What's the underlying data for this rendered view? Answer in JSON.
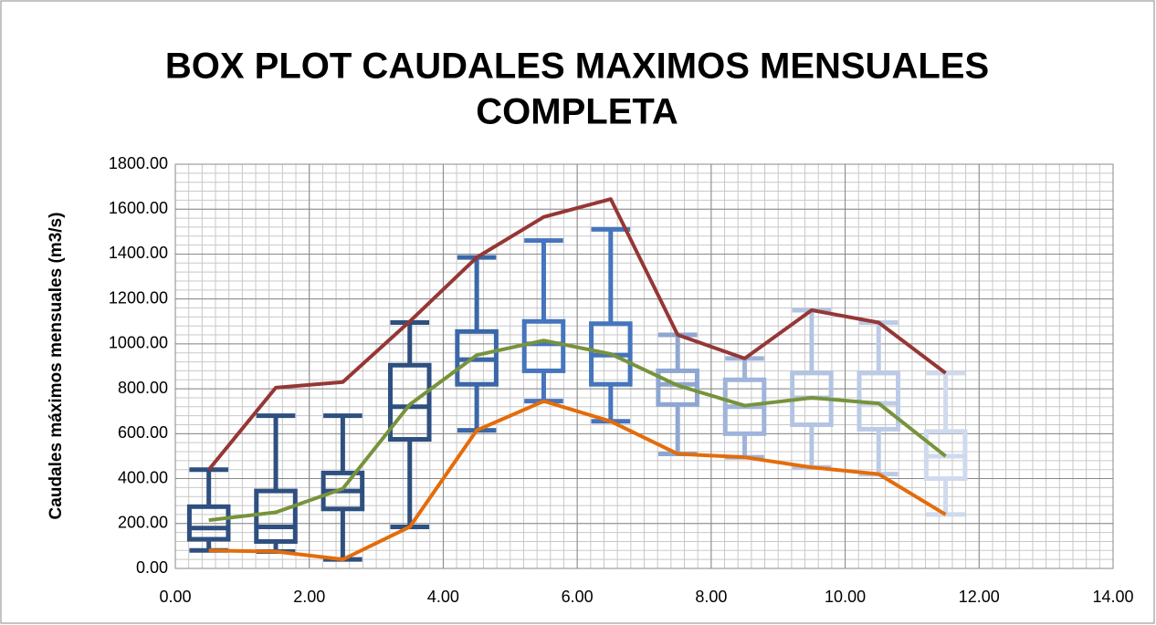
{
  "chart_data": {
    "type": "boxplot",
    "title": [
      "BOX PLOT CAUDALES MAXIMOS MENSUALES",
      "COMPLETA"
    ],
    "ylabel": "Caudales máximos mensuales (m3/s)",
    "xlim": [
      0,
      14
    ],
    "xticks": [
      {
        "value": 0,
        "label": "0.00"
      },
      {
        "value": 2,
        "label": "2.00"
      },
      {
        "value": 4,
        "label": "4.00"
      },
      {
        "value": 6,
        "label": "6.00"
      },
      {
        "value": 8,
        "label": "8.00"
      },
      {
        "value": 10,
        "label": "10.00"
      },
      {
        "value": 12,
        "label": "12.00"
      },
      {
        "value": 14,
        "label": "14.00"
      }
    ],
    "ylim": [
      0,
      1800
    ],
    "yticks": [
      {
        "value": 0,
        "label": "0.00"
      },
      {
        "value": 200,
        "label": "200.00"
      },
      {
        "value": 400,
        "label": "400.00"
      },
      {
        "value": 600,
        "label": "600.00"
      },
      {
        "value": 800,
        "label": "800.00"
      },
      {
        "value": 1000,
        "label": "1000.00"
      },
      {
        "value": 1200,
        "label": "1200.00"
      },
      {
        "value": 1400,
        "label": "1400.00"
      },
      {
        "value": 1600,
        "label": "1600.00"
      },
      {
        "value": 1800,
        "label": "1800.00"
      }
    ],
    "grid": true,
    "minor_grid": {
      "x": 0.2,
      "y": 40
    },
    "x": [
      0.5,
      1.5,
      2.5,
      3.5,
      4.5,
      5.5,
      6.5,
      7.5,
      8.5,
      9.5,
      10.5,
      11.5
    ],
    "boxes": [
      {
        "color": "#2e4f7f",
        "min": 80,
        "q1": 130,
        "median": 180,
        "q3": 275,
        "max": 440
      },
      {
        "color": "#2e4f7f",
        "min": 75,
        "q1": 120,
        "median": 185,
        "q3": 345,
        "max": 680
      },
      {
        "color": "#2e4f7f",
        "min": 40,
        "q1": 265,
        "median": 345,
        "q3": 425,
        "max": 680
      },
      {
        "color": "#2e4f7f",
        "min": 185,
        "q1": 575,
        "median": 720,
        "q3": 905,
        "max": 1095
      },
      {
        "color": "#3a67a8",
        "min": 615,
        "q1": 820,
        "median": 930,
        "q3": 1055,
        "max": 1385
      },
      {
        "color": "#4575bd",
        "min": 745,
        "q1": 880,
        "median": 1000,
        "q3": 1100,
        "max": 1460
      },
      {
        "color": "#4575bd",
        "min": 655,
        "q1": 820,
        "median": 950,
        "q3": 1090,
        "max": 1510
      },
      {
        "color": "#8ea7d2",
        "min": 510,
        "q1": 730,
        "median": 820,
        "q3": 880,
        "max": 1040
      },
      {
        "color": "#9fb4da",
        "min": 495,
        "q1": 600,
        "median": 720,
        "q3": 840,
        "max": 935
      },
      {
        "color": "#b3c4e3",
        "min": 450,
        "q1": 640,
        "median": 760,
        "q3": 870,
        "max": 1150
      },
      {
        "color": "#bccbe7",
        "min": 420,
        "q1": 620,
        "median": 735,
        "q3": 870,
        "max": 1095
      },
      {
        "color": "#cfdaee",
        "min": 240,
        "q1": 400,
        "median": 500,
        "q3": 610,
        "max": 870
      }
    ],
    "series": [
      {
        "color": "#953735",
        "values": [
          440,
          805,
          830,
          1100,
          1385,
          1565,
          1645,
          1040,
          935,
          1150,
          1095,
          870
        ]
      },
      {
        "color": "#77933c",
        "values": [
          215,
          250,
          355,
          730,
          950,
          1015,
          955,
          815,
          725,
          760,
          735,
          500
        ]
      },
      {
        "color": "#e46c0a",
        "values": [
          80,
          75,
          40,
          185,
          615,
          745,
          655,
          510,
          495,
          450,
          420,
          240
        ]
      }
    ]
  }
}
